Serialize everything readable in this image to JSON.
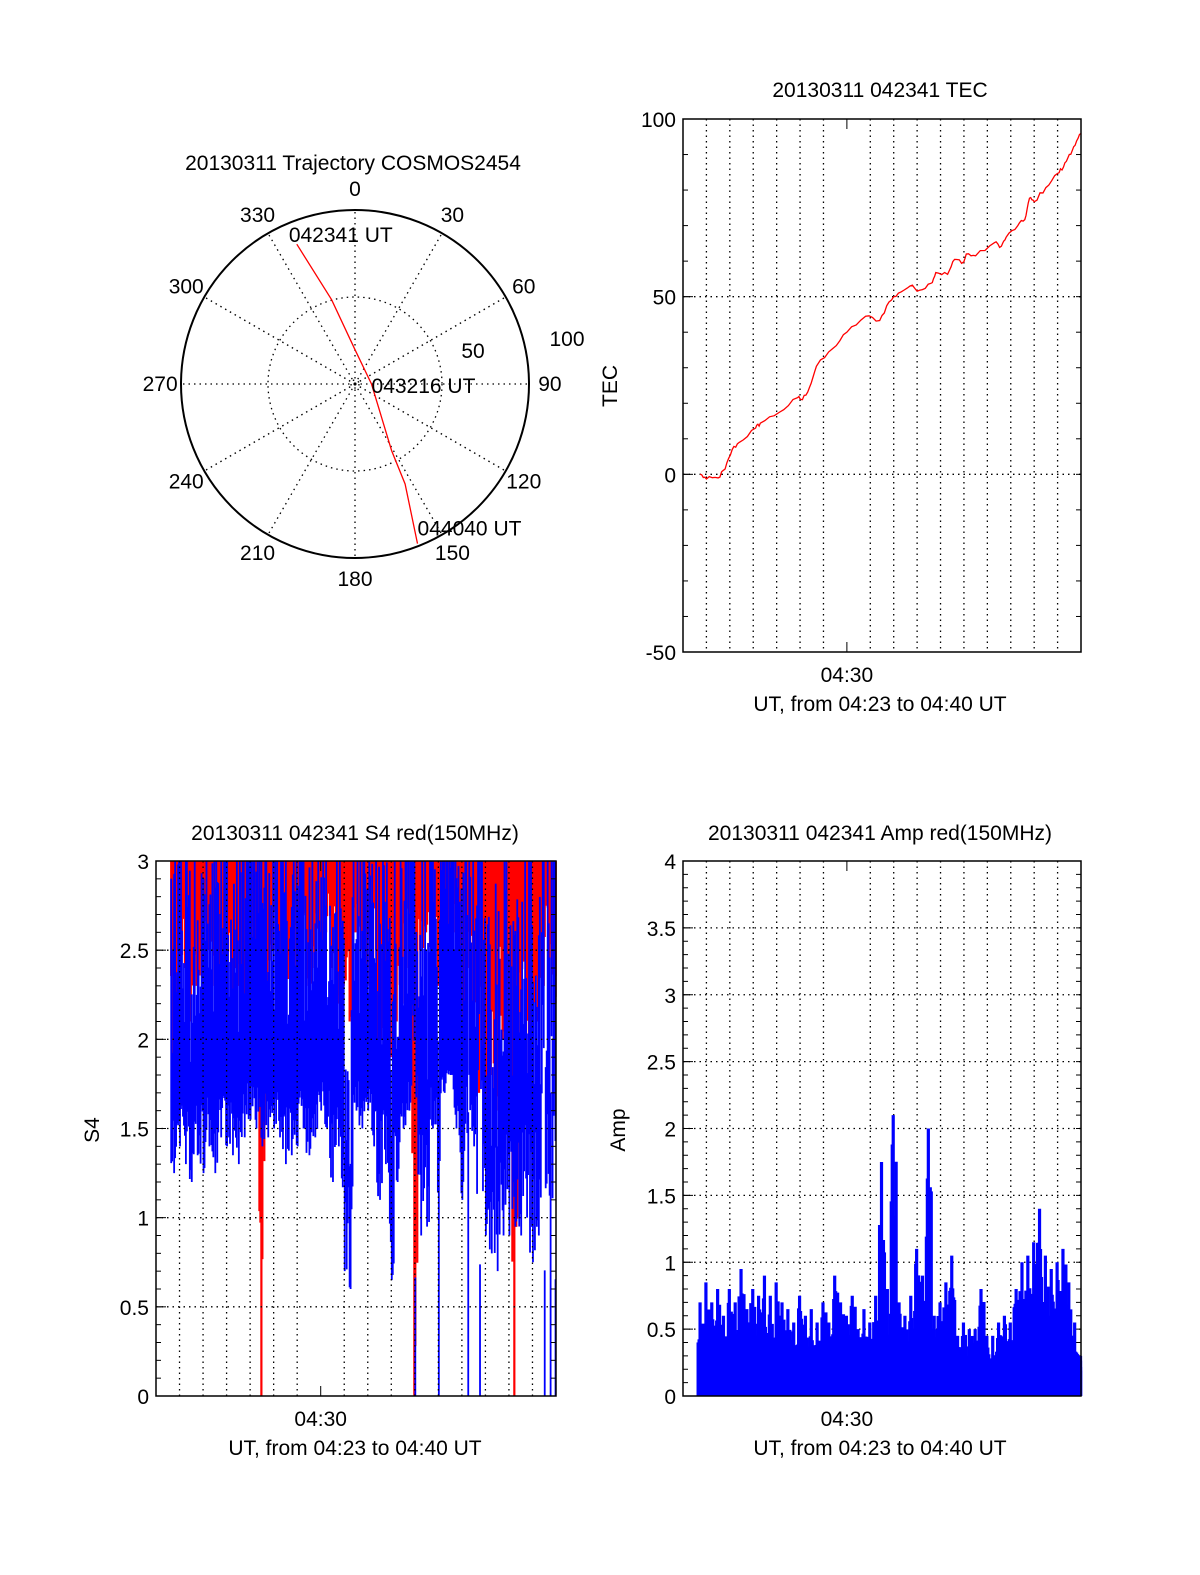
{
  "chart_data": [
    {
      "type": "polar",
      "title": "20130311 Trajectory COSMOS2454",
      "azimuth_labels": [
        "0",
        "30",
        "60",
        "90",
        "120",
        "150",
        "180",
        "210",
        "240",
        "270",
        "300",
        "330"
      ],
      "azimuth_values": [
        0,
        30,
        60,
        90,
        120,
        150,
        180,
        210,
        240,
        270,
        300,
        330
      ],
      "radial_labels": [
        "50",
        "100"
      ],
      "radial_values": [
        50,
        100
      ],
      "rlim": [
        0,
        100
      ],
      "grid": true,
      "series": [
        {
          "name": "trajectory",
          "color": "#ff0000",
          "azimuth": [
            337.4,
            344.5,
            0,
            90,
            151.2,
            153.4,
            158.6
          ],
          "radius": [
            87,
            50.3,
            19.7,
            9.5,
            43.7,
            64.3,
            98.5
          ]
        }
      ],
      "annotations": [
        {
          "text": "042341 UT",
          "azimuth": 337.4,
          "radius": 87
        },
        {
          "text": "043216 UT",
          "azimuth": 90,
          "radius": 9.5
        },
        {
          "text": "044040 UT",
          "azimuth": 158.6,
          "radius": 98.5
        }
      ]
    },
    {
      "type": "line",
      "title": "20130311 042341 TEC",
      "xlabel": "UT, from 04:23 to 04:40 UT",
      "ylabel": "TEC",
      "xlim": [
        23,
        40
      ],
      "ylim": [
        -50,
        100
      ],
      "x_ticks": [
        30
      ],
      "x_tick_labels": [
        "04:30"
      ],
      "y_ticks": [
        100,
        50,
        0,
        -50
      ],
      "y_tick_labels": [
        "100",
        "50",
        "0",
        "-50"
      ],
      "grid": true,
      "series": [
        {
          "name": "TEC",
          "color": "#ff0000",
          "x": [
            23.73,
            24.0,
            24.5,
            24.8,
            25.1,
            25.4,
            26.1,
            26.3,
            27.1,
            27.9,
            28.1,
            28.4,
            28.7,
            29.4,
            30.0,
            30.8,
            31.4,
            31.8,
            32.2,
            32.7,
            33.1,
            33.6,
            33.8,
            34.3,
            34.6,
            35.0,
            35.1,
            35.5,
            36.3,
            36.6,
            36.8,
            37.3,
            37.6,
            37.8,
            38.0,
            38.5,
            39.0,
            39.25,
            39.5,
            39.75,
            40.0
          ],
          "y": [
            0,
            -1.3,
            -1,
            1.5,
            7,
            9,
            13,
            14.4,
            17.4,
            21.6,
            21,
            24.4,
            30.4,
            35.4,
            40,
            44.5,
            43.3,
            48.5,
            51,
            53,
            51.8,
            53.8,
            56.8,
            56.3,
            60.5,
            59.8,
            62,
            61.5,
            65.2,
            64.2,
            66.7,
            70,
            71.7,
            77.7,
            76.7,
            80.7,
            84.7,
            86.4,
            90,
            92.6,
            95.9
          ]
        }
      ]
    },
    {
      "type": "bar",
      "title": "20130311 042341 S4 red(150MHz)",
      "xlabel": "UT, from 04:23 to 04:40 UT",
      "ylabel": "S4",
      "xlim": [
        23,
        40
      ],
      "ylim": [
        0,
        3
      ],
      "x_ticks": [
        30
      ],
      "x_tick_labels": [
        "04:30"
      ],
      "y_ticks": [
        3,
        2.5,
        2,
        1.5,
        1,
        0.5,
        0
      ],
      "y_tick_labels": [
        "3",
        "2.5",
        "2",
        "1.5",
        "1",
        "0.5",
        "0"
      ],
      "grid": true,
      "t_start": 23.75,
      "t_step": 0.25,
      "series": [
        {
          "name": "red",
          "color": "#ff0000",
          "min_values": [
            1.9,
            2.2,
            2.4,
            2.1,
            2.3,
            2.2,
            2.5,
            2.3,
            2.1,
            2.4,
            2.2,
            2.3,
            2.0,
            2.3,
            2.4,
            0,
            2.2,
            2.5,
            2.3,
            2.1,
            2.4,
            2.2,
            2.5,
            2.3,
            2.4,
            2.3,
            2.6,
            2.4,
            2.2,
            2.3,
            2.1,
            2.6,
            2.5,
            2.3,
            2.4,
            1.6,
            2.2,
            1.9,
            2.1,
            2.2,
            2.4,
            0,
            2.5,
            2.6,
            2.3,
            2.3,
            2.5,
            2.5,
            2.6,
            1.9,
            2.4,
            2.2,
            1.7,
            1.4,
            1.8,
            1.6,
            2.0,
            1.5,
            0,
            2.0,
            1.8,
            1.8,
            2.1,
            2.3,
            2.2,
            2.2
          ]
        },
        {
          "name": "blue",
          "color": "#0000ff",
          "min_values": [
            1.25,
            1.4,
            1.3,
            1.2,
            1.35,
            1.25,
            1.4,
            1.25,
            1.45,
            1.4,
            1.35,
            1.3,
            1.45,
            1.55,
            1.5,
            1.4,
            1.45,
            1.5,
            1.45,
            1.3,
            1.35,
            1.4,
            1.5,
            1.35,
            1.45,
            1.6,
            1.5,
            1.2,
            1.4,
            0.7,
            0.6,
            1.6,
            1.5,
            1.6,
            1.4,
            1.1,
            1.3,
            0.65,
            1.2,
            1.5,
            1.6,
            0,
            0.9,
            0.95,
            1.5,
            0,
            1.7,
            1.8,
            1.5,
            1.1,
            0,
            1.4,
            0,
            0.9,
            0.8,
            0.7,
            0.9,
            0.9,
            0.95,
            0.9,
            1.0,
            0.75,
            0.9,
            0,
            0,
            0
          ]
        }
      ]
    },
    {
      "type": "bar",
      "title": "20130311 042341 Amp red(150MHz)",
      "xlabel": "UT, from 04:23 to 04:40 UT",
      "ylabel": "Amp",
      "xlim": [
        23,
        40
      ],
      "ylim": [
        0,
        4
      ],
      "x_ticks": [
        30
      ],
      "x_tick_labels": [
        "04:30"
      ],
      "y_ticks": [
        4,
        3.5,
        3,
        2.5,
        2,
        1.5,
        1,
        0.5,
        0
      ],
      "y_tick_labels": [
        "4",
        "3.5",
        "3",
        "2.5",
        "2",
        "1.5",
        "1",
        "0.5",
        "0"
      ],
      "grid": true,
      "t_start": 23.75,
      "t_step": 0.25,
      "series": [
        {
          "name": "Amp",
          "color": "#0000ff",
          "max_values": [
            0.7,
            0.85,
            0.7,
            0.8,
            0.6,
            0.8,
            0.7,
            0.95,
            0.65,
            0.8,
            0.75,
            0.9,
            0.75,
            0.85,
            0.7,
            0.65,
            0.55,
            0.75,
            0.6,
            0.65,
            0.55,
            0.7,
            0.55,
            0.9,
            0.7,
            0.6,
            0.75,
            0.5,
            0.65,
            0.55,
            0.75,
            1.75,
            0.8,
            2.1,
            0.7,
            0.6,
            0.75,
            1.1,
            0.9,
            2.0,
            0.6,
            0.7,
            0.85,
            1.05,
            0.45,
            0.55,
            0.5,
            0.5,
            0.8,
            0.45,
            0.45,
            0.55,
            0.6,
            0.55,
            0.8,
            1.0,
            1.05,
            1.15,
            1.4,
            1.05,
            0.95,
            1.0,
            1.1,
            0.85,
            0.55,
            0.3
          ]
        }
      ]
    }
  ]
}
